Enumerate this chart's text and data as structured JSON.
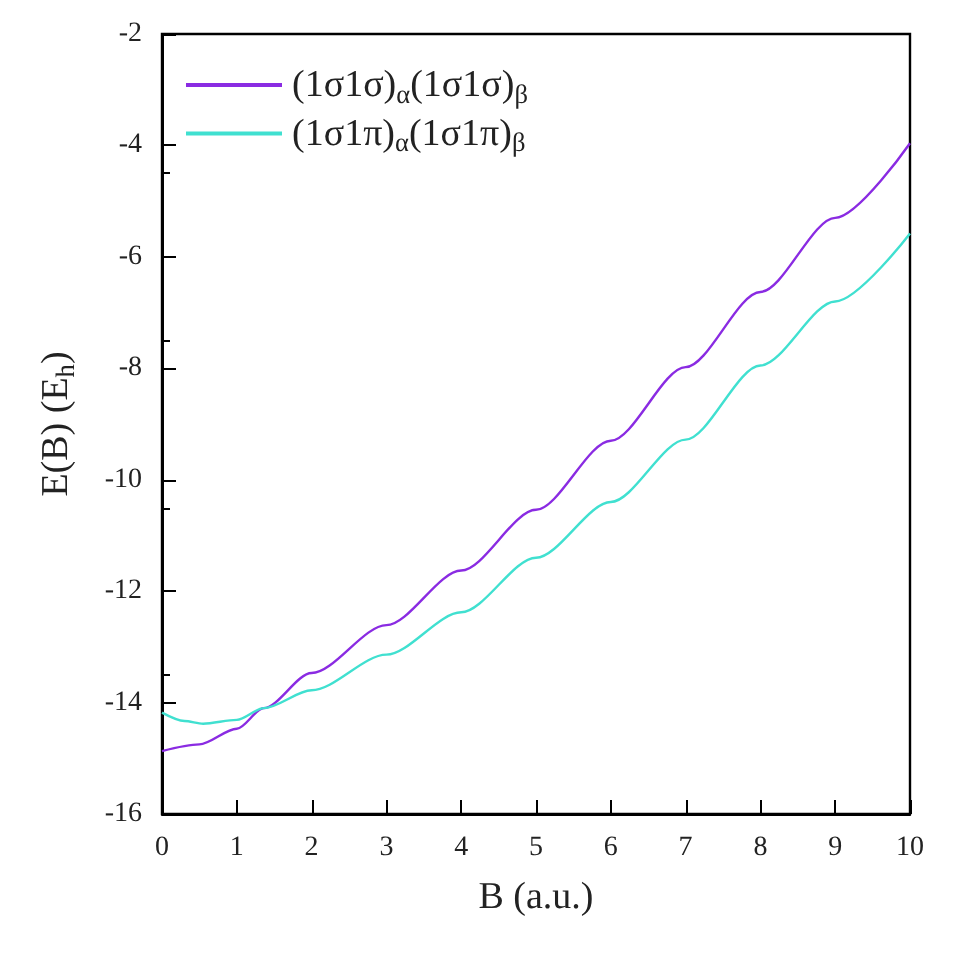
{
  "chart_data": {
    "type": "line",
    "xlabel": "B (a.u.)",
    "ylabel": "E(B) (E$_{h}$)",
    "xlim": [
      0,
      10
    ],
    "ylim": [
      -16,
      -2
    ],
    "xticks": [
      0,
      1,
      2,
      3,
      4,
      5,
      6,
      7,
      8,
      9,
      10
    ],
    "yticks": [
      -16,
      -14,
      -12,
      -10,
      -8,
      -6,
      -4,
      -2
    ],
    "grid": false,
    "legend": "top left",
    "series": [
      {
        "name": "(1σ1σ)$_{α}$(1σ1σ)$_{β}$",
        "color": "#8a2be2",
        "x": [
          0,
          0.5,
          1,
          1.36,
          2,
          3,
          4,
          5,
          6,
          7,
          8,
          9,
          10
        ],
        "values": [
          -14.87,
          -14.75,
          -14.47,
          -14.1,
          -13.47,
          -12.61,
          -11.63,
          -10.54,
          -9.3,
          -7.98,
          -6.63,
          -5.3,
          -3.96
        ]
      },
      {
        "name": "(1σ1π)$_{α}$(1σ1π)$_{β}$",
        "color": "#40e0d0",
        "x": [
          0,
          0.3,
          0.55,
          1,
          1.36,
          2,
          3,
          4,
          5,
          6,
          7,
          8,
          9,
          10
        ],
        "values": [
          -14.18,
          -14.33,
          -14.38,
          -14.31,
          -14.1,
          -13.78,
          -13.14,
          -12.38,
          -11.4,
          -10.4,
          -9.28,
          -7.95,
          -6.8,
          -5.58
        ]
      }
    ]
  }
}
